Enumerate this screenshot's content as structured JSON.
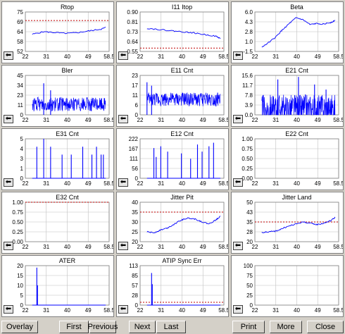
{
  "toolbar": {
    "overlay": "Overlay",
    "first": "First",
    "previous": "Previous",
    "next": "Next",
    "last": "Last",
    "print": "Print",
    "more": "More",
    "close": "Close"
  },
  "colors": {
    "series": "#0000ff",
    "limit": "#c00000",
    "grid": "#c0c0c0"
  },
  "chart_data": [
    {
      "id": "rtop",
      "type": "line",
      "title": "Rtop",
      "xlim": [
        22,
        58.5
      ],
      "ylim": [
        52,
        75
      ],
      "yticks": [
        "52",
        "58",
        "64",
        "69",
        "75"
      ],
      "xticks": [
        "22",
        "31",
        "40",
        "49",
        "58.5"
      ],
      "limit": 70,
      "x": [
        25,
        30,
        35,
        40,
        45,
        50,
        55,
        57
      ],
      "y": [
        62,
        63.5,
        63,
        62.5,
        63,
        64,
        65,
        66
      ]
    },
    {
      "id": "i11itop",
      "type": "line",
      "title": "I11 Itop",
      "xlim": [
        22,
        58.5
      ],
      "ylim": [
        0.55,
        0.9
      ],
      "yticks": [
        "0.55",
        "0.64",
        "0.73",
        "0.81",
        "0.90"
      ],
      "xticks": [
        "22",
        "31",
        "40",
        "49",
        "58.5"
      ],
      "limit": 0.58,
      "x": [
        25,
        30,
        35,
        40,
        45,
        50,
        55,
        57
      ],
      "y": [
        0.755,
        0.745,
        0.735,
        0.725,
        0.715,
        0.7,
        0.685,
        0.665
      ]
    },
    {
      "id": "beta",
      "type": "line",
      "title": "Beta",
      "xlim": [
        22,
        58.5
      ],
      "ylim": [
        -1.5,
        6.0
      ],
      "yticks": [
        "-1.5",
        "1.0",
        "2.8",
        "4.3",
        "6.0"
      ],
      "xticks": [
        "22",
        "31",
        "40",
        "49",
        "58.5"
      ],
      "x": [
        25,
        28,
        31,
        34,
        37,
        40,
        43,
        46,
        49,
        52,
        55,
        57
      ],
      "y": [
        -0.7,
        0.2,
        1.2,
        2.6,
        3.8,
        4.9,
        4.5,
        3.6,
        3.8,
        3.7,
        4.0,
        4.4
      ]
    },
    {
      "id": "bler",
      "type": "noise",
      "title": "Bler",
      "xlim": [
        22,
        58.5
      ],
      "ylim": [
        0,
        45
      ],
      "yticks": [
        "0",
        "11",
        "23",
        "34",
        "45"
      ],
      "xticks": [
        "22",
        "31",
        "40",
        "49",
        "58.5"
      ],
      "start": 25,
      "end": 57,
      "base": 12,
      "amp": 8,
      "spikes": [
        [
          30,
          36
        ],
        [
          33,
          28
        ]
      ]
    },
    {
      "id": "e11cnt",
      "type": "noise",
      "title": "E11 Cnt",
      "xlim": [
        22,
        58.5
      ],
      "ylim": [
        0,
        23
      ],
      "yticks": [
        "0",
        "6",
        "11",
        "17",
        "23"
      ],
      "xticks": [
        "22",
        "31",
        "40",
        "49",
        "58.5"
      ],
      "start": 25,
      "end": 57,
      "base": 9,
      "amp": 4,
      "spikes": [
        [
          25,
          19
        ],
        [
          27,
          17
        ]
      ]
    },
    {
      "id": "e21cnt",
      "type": "spikes",
      "title": "E21 Cnt",
      "xlim": [
        22,
        58.5
      ],
      "ylim": [
        0,
        15.6
      ],
      "yticks": [
        "0.0",
        "3.9",
        "7.8",
        "11.7",
        "15.6"
      ],
      "xticks": [
        "22",
        "31",
        "40",
        "49",
        "58.5"
      ],
      "start": 25,
      "end": 57,
      "base": 2,
      "amp": 6,
      "spikes": [
        [
          32,
          14
        ],
        [
          41,
          15
        ],
        [
          48,
          12
        ],
        [
          53,
          10
        ]
      ]
    },
    {
      "id": "e31cnt",
      "type": "spikes",
      "title": "E31 Cnt",
      "xlim": [
        22,
        58.5
      ],
      "ylim": [
        0,
        5
      ],
      "yticks": [
        "0",
        "1",
        "3",
        "4",
        "5"
      ],
      "xticks": [
        "22",
        "31",
        "40",
        "49",
        "58.5"
      ],
      "start": 25,
      "end": 57,
      "base": 0,
      "amp": 0,
      "spikes": [
        [
          27,
          4
        ],
        [
          30,
          5
        ],
        [
          33,
          4
        ],
        [
          38,
          3
        ],
        [
          42,
          3
        ],
        [
          47,
          4
        ],
        [
          51,
          3
        ],
        [
          53,
          4
        ],
        [
          55,
          3
        ],
        [
          56,
          3
        ]
      ]
    },
    {
      "id": "e12cnt",
      "type": "spikes",
      "title": "E12 Cnt",
      "xlim": [
        22,
        58.5
      ],
      "ylim": [
        0,
        222
      ],
      "yticks": [
        "0",
        "56",
        "111",
        "167",
        "222"
      ],
      "xticks": [
        "22",
        "31",
        "40",
        "49",
        "58.5"
      ],
      "start": 25,
      "end": 57,
      "base": 0,
      "amp": 0,
      "spikes": [
        [
          28,
          170
        ],
        [
          29,
          120
        ],
        [
          31,
          180
        ],
        [
          34,
          150
        ],
        [
          40,
          140
        ],
        [
          44,
          110
        ],
        [
          47,
          190
        ],
        [
          49,
          150
        ],
        [
          52,
          180
        ],
        [
          54,
          200
        ]
      ]
    },
    {
      "id": "e22cnt",
      "type": "empty",
      "title": "E22 Cnt",
      "xlim": [
        22,
        58.5
      ],
      "ylim": [
        0,
        1
      ],
      "yticks": [
        "0.00",
        "0.25",
        "0.50",
        "0.75",
        "1.00"
      ],
      "xticks": [
        "22",
        "31",
        "40",
        "49",
        "58.5"
      ]
    },
    {
      "id": "e32cnt",
      "type": "empty",
      "title": "E32 Cnt",
      "xlim": [
        22,
        58.5
      ],
      "ylim": [
        0,
        1
      ],
      "yticks": [
        "0.00",
        "0.25",
        "0.50",
        "0.75",
        "1.00"
      ],
      "xticks": [
        "22",
        "31",
        "40",
        "49",
        "58.5"
      ],
      "limit": 1.0
    },
    {
      "id": "jitterpit",
      "type": "line",
      "title": "Jitter Pit",
      "xlim": [
        22,
        58.5
      ],
      "ylim": [
        20,
        40
      ],
      "yticks": [
        "20",
        "25",
        "30",
        "35",
        "40"
      ],
      "xticks": [
        "22",
        "31",
        "40",
        "49",
        "58.5"
      ],
      "limit": 35,
      "x": [
        25,
        28,
        31,
        34,
        37,
        40,
        43,
        46,
        49,
        52,
        55,
        57
      ],
      "y": [
        25,
        24.5,
        26,
        27,
        29,
        31,
        32,
        31.5,
        30,
        29,
        31,
        33
      ]
    },
    {
      "id": "jitterland",
      "type": "line",
      "title": "Jitter Land",
      "xlim": [
        22,
        58.5
      ],
      "ylim": [
        20,
        50
      ],
      "yticks": [
        "20",
        "28",
        "35",
        "43",
        "50"
      ],
      "xticks": [
        "22",
        "31",
        "40",
        "49",
        "58.5"
      ],
      "limit": 35,
      "x": [
        25,
        28,
        31,
        34,
        37,
        40,
        43,
        46,
        49,
        52,
        55,
        57
      ],
      "y": [
        27,
        27.5,
        28,
        30,
        32,
        33.5,
        35,
        34,
        33,
        34,
        36,
        38.5
      ]
    },
    {
      "id": "ater",
      "type": "spikes",
      "title": "ATER",
      "xlim": [
        22,
        58.5
      ],
      "ylim": [
        0,
        20
      ],
      "yticks": [
        "0",
        "5",
        "10",
        "15",
        "20"
      ],
      "xticks": [
        "22",
        "31",
        "40",
        "49",
        "58.5"
      ],
      "start": 25,
      "end": 57,
      "base": 0,
      "amp": 0,
      "spikes": [
        [
          27,
          19
        ],
        [
          27.3,
          10
        ]
      ]
    },
    {
      "id": "atipsyncerr",
      "type": "spikes",
      "title": "ATIP Sync Err",
      "xlim": [
        22,
        58.5
      ],
      "ylim": [
        0,
        113
      ],
      "yticks": [
        "0",
        "28",
        "57",
        "85",
        "113"
      ],
      "xticks": [
        "22",
        "31",
        "40",
        "49",
        "58.5"
      ],
      "limit": 8,
      "start": 25,
      "end": 57,
      "base": 0,
      "amp": 0,
      "spikes": [
        [
          27,
          92
        ],
        [
          27.3,
          60
        ]
      ]
    },
    {
      "id": "empty",
      "type": "empty",
      "title": "",
      "xlim": [
        22,
        58.5
      ],
      "ylim": [
        0,
        100
      ],
      "yticks": [
        "0",
        "25",
        "50",
        "75",
        "100"
      ],
      "xticks": [
        "22",
        "31",
        "40",
        "49",
        "58.5"
      ]
    }
  ]
}
